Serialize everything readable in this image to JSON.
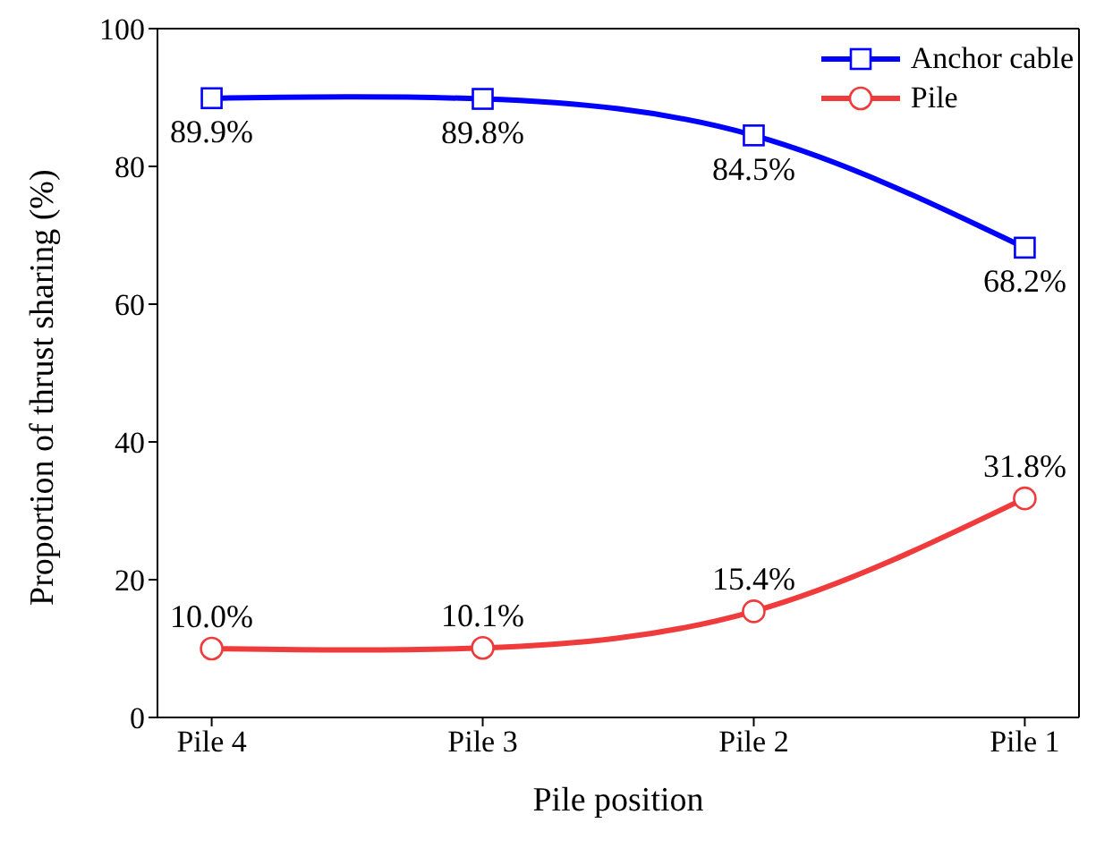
{
  "chart_data": {
    "type": "line",
    "xlabel": "Pile position",
    "ylabel": "Proportion of thrust sharing (%)",
    "categories": [
      "Pile 4",
      "Pile 3",
      "Pile 2",
      "Pile 1"
    ],
    "series": [
      {
        "name": "Anchor cable",
        "color": "#0000ff",
        "marker": "square",
        "values": [
          89.9,
          89.8,
          84.5,
          68.2
        ],
        "value_labels": [
          "89.9%",
          "89.8%",
          "84.5%",
          "68.2%"
        ]
      },
      {
        "name": "Pile",
        "color": "#ef3b3b",
        "marker": "circle",
        "values": [
          10.0,
          10.1,
          15.4,
          31.8
        ],
        "value_labels": [
          "10.0%",
          "10.1%",
          "15.4%",
          "31.8%"
        ]
      }
    ],
    "ylim": [
      0,
      100
    ],
    "yticks": [
      0,
      20,
      40,
      60,
      80,
      100
    ],
    "grid": false,
    "legend": "top right",
    "line_style": "solid"
  }
}
